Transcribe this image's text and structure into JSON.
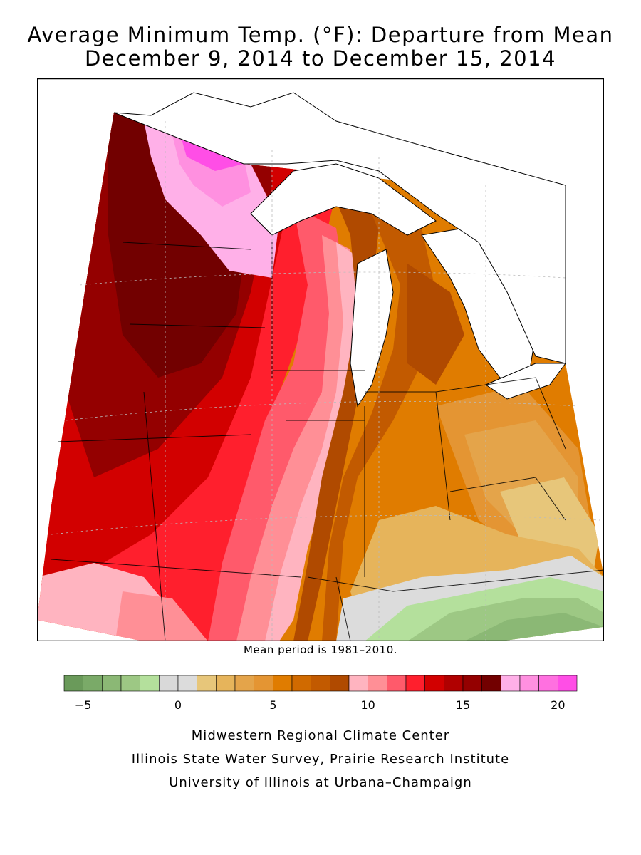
{
  "title": {
    "line1": "Average Minimum Temp. (°F): Departure from Mean",
    "line2": "December 9, 2014 to December 15, 2014"
  },
  "map": {
    "region": "Midwest United States and Great Lakes",
    "lake_color": "#ffffff",
    "border_color": "#000000"
  },
  "note": "Mean period is 1981–2010.",
  "legend": {
    "colors": [
      "#6a9a5a",
      "#7aaa68",
      "#8bb875",
      "#9dc884",
      "#b4e09c",
      "#d9d9d9",
      "#dcdcdc",
      "#e7c67a",
      "#e6b45b",
      "#e4a44a",
      "#e49533",
      "#e07c00",
      "#d06a00",
      "#c25a00",
      "#b04a00",
      "#ffb4c0",
      "#ff8f96",
      "#ff5a6b",
      "#ff1f2d",
      "#d20000",
      "#b00000",
      "#940000",
      "#720000",
      "#ffb0e8",
      "#ff90e0",
      "#ff70e0",
      "#ff4ee6"
    ],
    "tick_labels": [
      "−5",
      "0",
      "5",
      "10",
      "15",
      "20"
    ],
    "tick_values": [
      -5,
      0,
      5,
      10,
      15,
      20
    ],
    "min": -6,
    "max": 21,
    "step": 1
  },
  "credits": {
    "line1": "Midwestern Regional Climate Center",
    "line2": "Illinois State Water Survey, Prairie Research Institute",
    "line3": "University of Illinois at Urbana–Champaign"
  }
}
